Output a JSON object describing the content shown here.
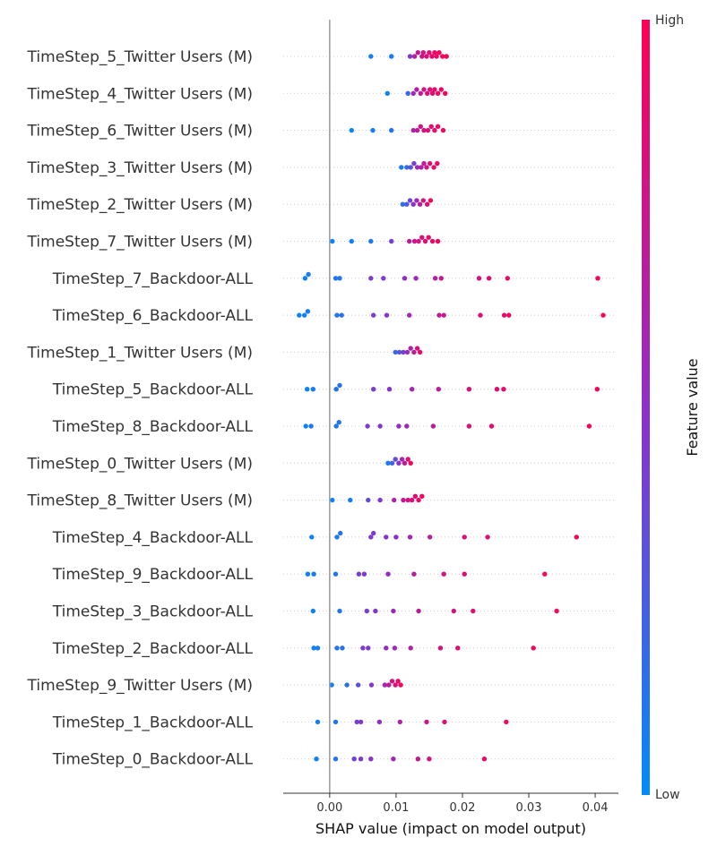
{
  "chart_data": {
    "type": "scatter",
    "subtype": "shap-beeswarm",
    "title": "",
    "xlabel": "SHAP value (impact on model output)",
    "ylabel": "",
    "xlim": [
      -0.007,
      0.0435
    ],
    "xticks": [
      0.0,
      0.01,
      0.02,
      0.03,
      0.04
    ],
    "xtick_labels": [
      "0.00",
      "0.01",
      "0.02",
      "0.03",
      "0.04"
    ],
    "grid": false,
    "colorbar": {
      "label": "Feature value",
      "high_label": "High",
      "low_label": "Low",
      "low_color": "#008bfb",
      "high_color": "#ff0052",
      "mid_color": "#8f2fc7"
    },
    "features": [
      {
        "name": "TimeStep_5_Twitter Users (M)",
        "shap": [
          0.0062,
          0.0093,
          0.0121,
          0.0128,
          0.0133,
          0.0139,
          0.0141,
          0.0146,
          0.015,
          0.0154,
          0.0158,
          0.0161,
          0.0165,
          0.017,
          0.0176
        ],
        "feature_value": [
          0.05,
          0.08,
          0.45,
          0.65,
          0.72,
          0.76,
          0.8,
          0.82,
          0.85,
          0.88,
          0.9,
          0.92,
          0.94,
          0.96,
          0.98
        ]
      },
      {
        "name": "TimeStep_4_Twitter Users (M)",
        "shap": [
          0.0087,
          0.0118,
          0.0126,
          0.0131,
          0.0137,
          0.0142,
          0.0147,
          0.0151,
          0.0155,
          0.0158,
          0.0163,
          0.0168,
          0.0174
        ],
        "feature_value": [
          0.06,
          0.2,
          0.55,
          0.66,
          0.74,
          0.78,
          0.82,
          0.86,
          0.88,
          0.9,
          0.93,
          0.95,
          0.97
        ]
      },
      {
        "name": "TimeStep_6_Twitter Users (M)",
        "shap": [
          0.0033,
          0.0065,
          0.0093,
          0.0126,
          0.0132,
          0.0137,
          0.0142,
          0.0148,
          0.0153,
          0.0158,
          0.0163,
          0.0171
        ],
        "feature_value": [
          0.04,
          0.07,
          0.12,
          0.62,
          0.72,
          0.76,
          0.8,
          0.84,
          0.88,
          0.9,
          0.93,
          0.97
        ]
      },
      {
        "name": "TimeStep_3_Twitter Users (M)",
        "shap": [
          0.0108,
          0.0116,
          0.0122,
          0.0127,
          0.0132,
          0.0138,
          0.0142,
          0.0146,
          0.0151,
          0.0157,
          0.0162
        ],
        "feature_value": [
          0.08,
          0.18,
          0.3,
          0.42,
          0.55,
          0.64,
          0.72,
          0.78,
          0.85,
          0.9,
          0.95
        ]
      },
      {
        "name": "TimeStep_2_Twitter Users (M)",
        "shap": [
          0.011,
          0.0116,
          0.0121,
          0.0126,
          0.0131,
          0.0136,
          0.0141,
          0.0147,
          0.0152
        ],
        "feature_value": [
          0.15,
          0.25,
          0.38,
          0.5,
          0.6,
          0.7,
          0.78,
          0.86,
          0.93
        ]
      },
      {
        "name": "TimeStep_7_Twitter Users (M)",
        "shap": [
          0.0004,
          0.0033,
          0.0062,
          0.0093,
          0.012,
          0.0128,
          0.0134,
          0.0139,
          0.0144,
          0.0149,
          0.0155,
          0.0163
        ],
        "feature_value": [
          0.03,
          0.05,
          0.08,
          0.4,
          0.7,
          0.76,
          0.8,
          0.83,
          0.86,
          0.9,
          0.93,
          0.96
        ]
      },
      {
        "name": "TimeStep_7_Backdoor-ALL",
        "shap": [
          -0.0037,
          -0.0032,
          0.0009,
          0.0015,
          0.0062,
          0.0081,
          0.0113,
          0.013,
          0.0159,
          0.0168,
          0.0225,
          0.024,
          0.0268,
          0.0404
        ],
        "feature_value": [
          0.05,
          0.08,
          0.1,
          0.12,
          0.42,
          0.45,
          0.5,
          0.55,
          0.68,
          0.72,
          0.85,
          0.88,
          0.92,
          0.97
        ]
      },
      {
        "name": "TimeStep_6_Backdoor-ALL",
        "shap": [
          -0.0046,
          -0.0038,
          -0.0033,
          0.0011,
          0.0018,
          0.0066,
          0.0086,
          0.012,
          0.0165,
          0.0172,
          0.0227,
          0.0263,
          0.027,
          0.0412
        ],
        "feature_value": [
          0.04,
          0.06,
          0.08,
          0.12,
          0.14,
          0.42,
          0.46,
          0.58,
          0.72,
          0.75,
          0.86,
          0.9,
          0.93,
          0.98
        ]
      },
      {
        "name": "TimeStep_1_Twitter Users (M)",
        "shap": [
          0.0099,
          0.0105,
          0.0111,
          0.0117,
          0.0122,
          0.0127,
          0.0132,
          0.0136
        ],
        "feature_value": [
          0.2,
          0.3,
          0.4,
          0.52,
          0.62,
          0.72,
          0.82,
          0.92
        ]
      },
      {
        "name": "TimeStep_5_Backdoor-ALL",
        "shap": [
          -0.0034,
          -0.0025,
          0.001,
          0.0015,
          0.0066,
          0.009,
          0.0124,
          0.0164,
          0.021,
          0.0252,
          0.0262,
          0.0403
        ],
        "feature_value": [
          0.05,
          0.08,
          0.12,
          0.14,
          0.42,
          0.48,
          0.6,
          0.7,
          0.82,
          0.88,
          0.9,
          0.97
        ]
      },
      {
        "name": "TimeStep_8_Backdoor-ALL",
        "shap": [
          -0.0036,
          -0.0028,
          0.001,
          0.0014,
          0.0057,
          0.0076,
          0.0104,
          0.0116,
          0.0156,
          0.021,
          0.0244,
          0.0391
        ],
        "feature_value": [
          0.05,
          0.08,
          0.1,
          0.12,
          0.42,
          0.46,
          0.52,
          0.56,
          0.7,
          0.85,
          0.9,
          0.97
        ]
      },
      {
        "name": "TimeStep_0_Twitter Users (M)",
        "shap": [
          0.0088,
          0.0094,
          0.0099,
          0.0104,
          0.0109,
          0.0113,
          0.0118,
          0.0122
        ],
        "feature_value": [
          0.1,
          0.22,
          0.35,
          0.48,
          0.6,
          0.72,
          0.84,
          0.94
        ]
      },
      {
        "name": "TimeStep_8_Twitter Users (M)",
        "shap": [
          0.0004,
          0.0031,
          0.0058,
          0.0076,
          0.0097,
          0.0111,
          0.0118,
          0.0124,
          0.0129,
          0.0134,
          0.0139
        ],
        "feature_value": [
          0.04,
          0.08,
          0.35,
          0.45,
          0.62,
          0.74,
          0.8,
          0.85,
          0.88,
          0.92,
          0.96
        ]
      },
      {
        "name": "TimeStep_4_Backdoor-ALL",
        "shap": [
          -0.0027,
          0.0011,
          0.0016,
          0.0062,
          0.0066,
          0.0085,
          0.01,
          0.0121,
          0.0151,
          0.0203,
          0.0238,
          0.0372
        ],
        "feature_value": [
          0.05,
          0.1,
          0.12,
          0.42,
          0.44,
          0.48,
          0.52,
          0.6,
          0.7,
          0.84,
          0.88,
          0.96
        ]
      },
      {
        "name": "TimeStep_9_Backdoor-ALL",
        "shap": [
          -0.0033,
          -0.0024,
          0.0009,
          0.0044,
          0.0052,
          0.0088,
          0.0127,
          0.0172,
          0.0203,
          0.0324
        ],
        "feature_value": [
          0.05,
          0.08,
          0.12,
          0.4,
          0.45,
          0.52,
          0.68,
          0.8,
          0.86,
          0.94
        ]
      },
      {
        "name": "TimeStep_3_Backdoor-ALL",
        "shap": [
          -0.0025,
          0.0015,
          0.0056,
          0.0069,
          0.0096,
          0.0134,
          0.0187,
          0.0216,
          0.0342
        ],
        "feature_value": [
          0.06,
          0.12,
          0.42,
          0.46,
          0.55,
          0.7,
          0.82,
          0.86,
          0.95
        ]
      },
      {
        "name": "TimeStep_2_Backdoor-ALL",
        "shap": [
          -0.0024,
          -0.0018,
          0.0011,
          0.0019,
          0.005,
          0.0058,
          0.0085,
          0.0098,
          0.0122,
          0.0167,
          0.0193,
          0.0307
        ],
        "feature_value": [
          0.05,
          0.07,
          0.12,
          0.14,
          0.42,
          0.44,
          0.52,
          0.56,
          0.66,
          0.78,
          0.85,
          0.95
        ]
      },
      {
        "name": "TimeStep_9_Twitter Users (M)",
        "shap": [
          0.0003,
          0.0026,
          0.0043,
          0.0063,
          0.0083,
          0.0089,
          0.0094,
          0.0099,
          0.0103,
          0.0107
        ],
        "feature_value": [
          0.05,
          0.15,
          0.32,
          0.45,
          0.6,
          0.7,
          0.78,
          0.85,
          0.9,
          0.95
        ]
      },
      {
        "name": "TimeStep_1_Backdoor-ALL",
        "shap": [
          -0.0018,
          0.0009,
          0.0041,
          0.0047,
          0.0075,
          0.0106,
          0.0146,
          0.0173,
          0.0266
        ],
        "feature_value": [
          0.06,
          0.12,
          0.4,
          0.44,
          0.52,
          0.65,
          0.78,
          0.84,
          0.94
        ]
      },
      {
        "name": "TimeStep_0_Backdoor-ALL",
        "shap": [
          -0.002,
          0.0009,
          0.0037,
          0.0047,
          0.0062,
          0.0096,
          0.0133,
          0.015,
          0.0233
        ],
        "feature_value": [
          0.06,
          0.12,
          0.4,
          0.44,
          0.48,
          0.6,
          0.74,
          0.8,
          0.92
        ]
      }
    ]
  }
}
